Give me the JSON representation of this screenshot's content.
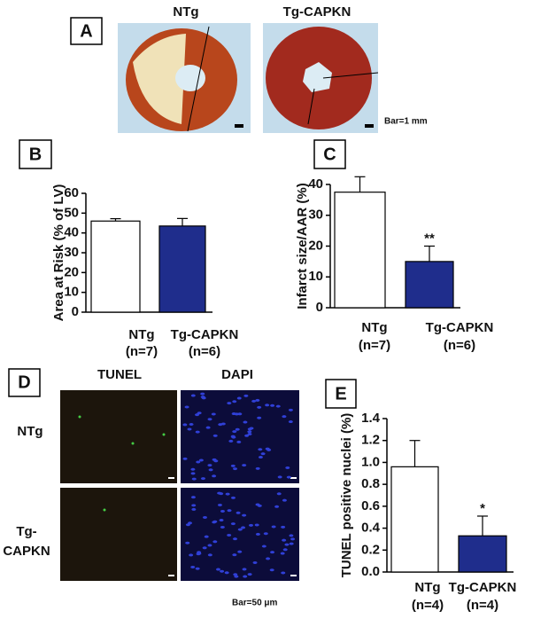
{
  "panels": {
    "A": {
      "label": "A",
      "groups": [
        "NTg",
        "Tg-CAPKN"
      ],
      "scale_note": "Bar=1 mm"
    },
    "D": {
      "label": "D",
      "columns": [
        "TUNEL",
        "DAPI"
      ],
      "rows": [
        "NTg",
        "Tg-\nCAPKN"
      ],
      "scale_note": "Bar=50 μm"
    }
  },
  "chart_data": [
    {
      "type": "bar",
      "panel": "B",
      "y_label": "Area at Risk (% of LV)",
      "categories": [
        "NTg",
        "Tg-CAPKN"
      ],
      "n_labels": [
        "(n=7)",
        "(n=6)"
      ],
      "values": [
        46,
        43.5
      ],
      "errors": [
        1.2,
        3.8
      ],
      "colors": [
        "#ffffff",
        "#1f2d8c"
      ],
      "significance": [
        null,
        null
      ],
      "ylim": [
        0,
        60
      ],
      "yticks": [
        0,
        10,
        20,
        30,
        40,
        50,
        60
      ]
    },
    {
      "type": "bar",
      "panel": "C",
      "y_label": "Infarct size/AAR (%)",
      "categories": [
        "NTg",
        "Tg-CAPKN"
      ],
      "n_labels": [
        "(n=7)",
        "(n=6)"
      ],
      "values": [
        37.5,
        15
      ],
      "errors": [
        5,
        5
      ],
      "colors": [
        "#ffffff",
        "#1f2d8c"
      ],
      "significance": [
        null,
        "**"
      ],
      "ylim": [
        0,
        40
      ],
      "yticks": [
        0,
        10,
        20,
        30,
        40
      ]
    },
    {
      "type": "bar",
      "panel": "E",
      "y_label": "TUNEL positive nuclei (%)",
      "categories": [
        "NTg",
        "Tg-CAPKN"
      ],
      "n_labels": [
        "(n=4)",
        "(n=4)"
      ],
      "values": [
        0.96,
        0.33
      ],
      "errors": [
        0.24,
        0.18
      ],
      "colors": [
        "#ffffff",
        "#1f2d8c"
      ],
      "significance": [
        null,
        "*"
      ],
      "ylim": [
        0,
        1.4
      ],
      "yticks": [
        {
          "value": 0,
          "label": "0.0"
        },
        0.2,
        0.4,
        0.6,
        0.8,
        {
          "value": 1,
          "label": "1.0"
        },
        1.2,
        1.4
      ]
    }
  ]
}
